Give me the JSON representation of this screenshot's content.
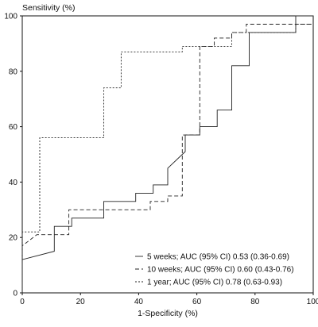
{
  "chart_data": {
    "type": "line",
    "title": "",
    "xlabel": "1-Specificity (%)",
    "ylabel": "Sensitivity (%)",
    "xlim": [
      0,
      100
    ],
    "ylim": [
      0,
      100
    ],
    "x_ticks": [
      "0",
      "20",
      "40",
      "60",
      "80",
      "100"
    ],
    "y_ticks": [
      "0",
      "20",
      "40",
      "60",
      "80",
      "100"
    ],
    "grid": false,
    "legend_position": "bottom-right",
    "series": [
      {
        "name": "5 weeks; AUC (95% CI) 0.53 (0.36-0.69)",
        "style": "solid",
        "x": [
          0,
          0,
          11,
          11,
          17,
          17,
          28,
          28,
          39,
          39,
          45,
          45,
          50,
          50,
          56,
          56,
          61,
          61,
          67,
          67,
          72,
          72,
          78,
          78,
          94,
          94,
          100
        ],
        "y": [
          0,
          12,
          15,
          24,
          24,
          27,
          27,
          33,
          33,
          36,
          36,
          39,
          39,
          45,
          51,
          57,
          57,
          60,
          60,
          66,
          66,
          82,
          82,
          94,
          94,
          100,
          100
        ]
      },
      {
        "name": "10 weeks; AUC (95% CI) 0.60 (0.43-0.76)",
        "style": "dashed",
        "x": [
          0,
          0,
          5,
          5,
          16,
          16,
          44,
          44,
          50,
          50,
          55,
          55,
          61,
          61,
          66,
          66,
          72,
          72,
          77,
          77,
          94,
          94,
          100
        ],
        "y": [
          0,
          17,
          21,
          21,
          21,
          30,
          30,
          33,
          33,
          35,
          35,
          57,
          57,
          89,
          89,
          92,
          92,
          94,
          94,
          97,
          97,
          97,
          97
        ]
      },
      {
        "name": "1 year; AUC (95% CI) 0.78 (0.63-0.93)",
        "style": "dotted",
        "x": [
          0,
          0,
          6,
          6,
          28,
          28,
          34,
          34,
          55,
          55,
          72,
          72,
          94,
          94,
          100
        ],
        "y": [
          0,
          22,
          22,
          56,
          56,
          74,
          74,
          87,
          87,
          89,
          89,
          94,
          94,
          97,
          97
        ]
      }
    ]
  }
}
